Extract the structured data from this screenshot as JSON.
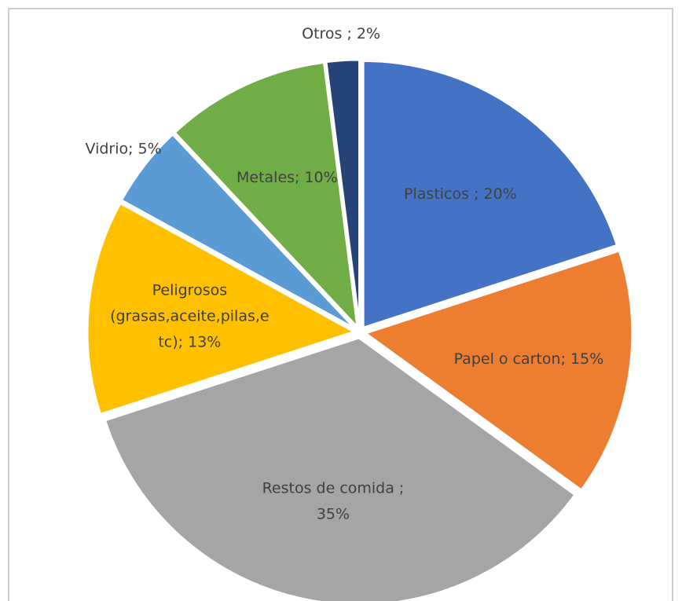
{
  "chart_data": {
    "type": "pie",
    "values": [
      20,
      15,
      35,
      13,
      5,
      10,
      2
    ],
    "value_labels": [
      [
        "Plasticos ; 20%"
      ],
      [
        "Papel o carton; 15%"
      ],
      [
        "Restos de comida ;",
        "35%"
      ],
      [
        "Peligrosos",
        "(grasas,aceite,pilas,e",
        "tc); 13%"
      ],
      [
        "Vidrio; 5%"
      ],
      [
        "Metales; 10%"
      ],
      [
        "Otros ; 2%"
      ]
    ],
    "colors": [
      "#4472c4",
      "#ed7d31",
      "#a5a5a5",
      "#ffc000",
      "#5b9bd5",
      "#70ad47",
      "#264478"
    ]
  }
}
